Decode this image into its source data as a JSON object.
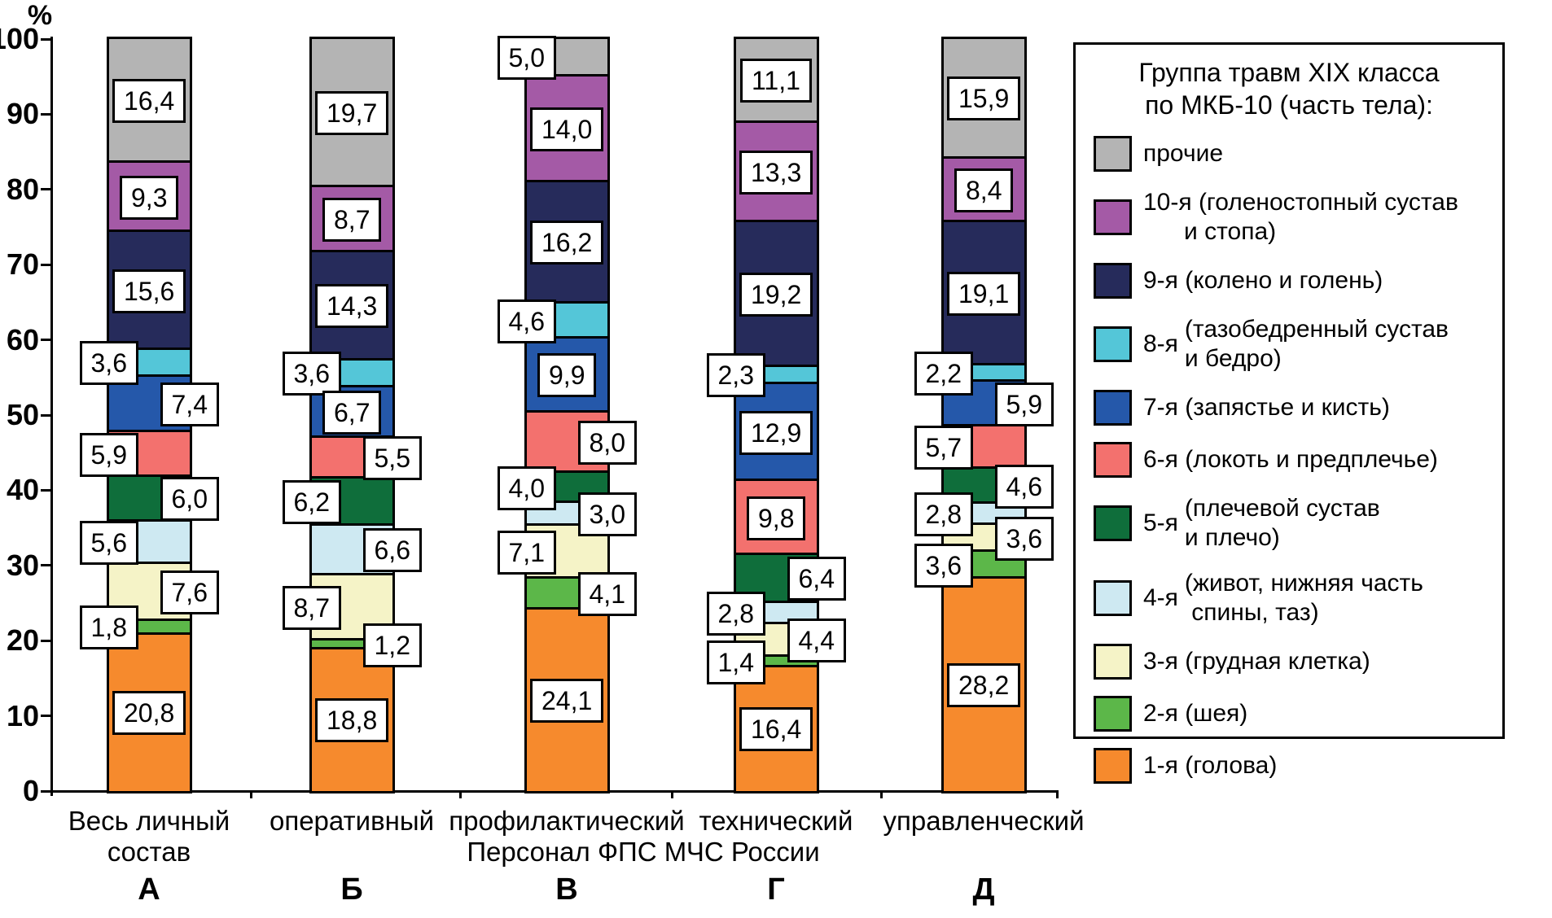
{
  "chart_data": {
    "type": "bar",
    "stacked": true,
    "grid": false,
    "percent_label": "%",
    "y_axis": {
      "min": 0,
      "max": 100,
      "step": 10,
      "unit": "%"
    },
    "x_axis_title": "Персонал ФПС МЧС России",
    "legend": {
      "position": "right",
      "title": "Группа травм XIX класса\nпо МКБ-10 (часть тела):"
    },
    "series": [
      {
        "name": "прочие",
        "color": "#b4b4b4",
        "legend_prefix": "",
        "legend_text": "прочие"
      },
      {
        "name": "10-я (голеностопный сустав и стопа)",
        "color": "#a45aa6",
        "legend_prefix": "",
        "legend_text": "10-я (голеностопный сустав\n      и стопа)"
      },
      {
        "name": "9-я (колено и голень)",
        "color": "#262b5b",
        "legend_prefix": "",
        "legend_text": "9-я (колено и голень)"
      },
      {
        "name": "8-я (тазобедренный сустав и бедро)",
        "color": "#54c6d8",
        "legend_prefix": "8-я",
        "legend_text": "(тазобедренный сустав\nи бедро)"
      },
      {
        "name": "7-я (запястье и кисть)",
        "color": "#2558aa",
        "legend_prefix": "",
        "legend_text": "7-я (запястье и кисть)"
      },
      {
        "name": "6-я (локоть и предплечье)",
        "color": "#f3716e",
        "legend_prefix": "",
        "legend_text": "6-я (локоть и предплечье)"
      },
      {
        "name": "5-я (плечевой сустав и плечо)",
        "color": "#0f6e3b",
        "legend_prefix": "5-я",
        "legend_text": "(плечевой сустав\nи плечо)"
      },
      {
        "name": "4-я (живот, нижняя часть спины, таз)",
        "color": "#cee9f2",
        "legend_prefix": "4-я",
        "legend_text": "(живот, нижняя часть\n спины, таз)"
      },
      {
        "name": "3-я (грудная клетка)",
        "color": "#f5f3c7",
        "legend_prefix": "",
        "legend_text": "3-я (грудная клетка)"
      },
      {
        "name": "2-я (шея)",
        "color": "#5cb749",
        "legend_prefix": "",
        "legend_text": "2-я (шея)"
      },
      {
        "name": "1-я (голова)",
        "color": "#f68a2d",
        "legend_prefix": "",
        "legend_text": "1-я (голова)"
      }
    ],
    "categories": [
      {
        "letter": "А",
        "label": "Весь личный\nсостав",
        "values": [
          16.4,
          9.3,
          15.6,
          3.6,
          7.4,
          5.9,
          6.0,
          5.6,
          7.6,
          1.8,
          20.8
        ],
        "label_pos": [
          "c",
          "c",
          "c",
          "l",
          "r",
          "l",
          "r",
          "l",
          "r",
          "l",
          "c"
        ]
      },
      {
        "letter": "Б",
        "label": "оперативный",
        "values": [
          19.7,
          8.7,
          14.3,
          3.6,
          6.7,
          5.5,
          6.2,
          6.6,
          8.7,
          1.2,
          18.8
        ],
        "label_pos": [
          "c",
          "c",
          "c",
          "l",
          "c",
          "r",
          "l",
          "r",
          "l",
          "r",
          "c"
        ]
      },
      {
        "letter": "В",
        "label": "профилактический",
        "values": [
          5.0,
          14.0,
          16.2,
          4.6,
          9.9,
          8.0,
          4.0,
          3.0,
          7.1,
          4.1,
          24.1
        ],
        "label_pos": [
          "l",
          "c",
          "c",
          "l",
          "c",
          "r",
          "l",
          "r",
          "l",
          "r",
          "c"
        ]
      },
      {
        "letter": "Г",
        "label": "технический",
        "values": [
          11.1,
          13.3,
          19.2,
          2.3,
          12.9,
          9.8,
          6.4,
          2.8,
          4.4,
          1.4,
          16.4
        ],
        "label_pos": [
          "c",
          "c",
          "c",
          "l",
          "c",
          "c",
          "r",
          "l",
          "r",
          "l",
          "c"
        ]
      },
      {
        "letter": "Д",
        "label": "управленческий",
        "values": [
          15.9,
          8.4,
          19.1,
          2.2,
          5.9,
          5.7,
          4.6,
          2.8,
          3.6,
          3.6,
          28.2
        ],
        "label_pos": [
          "c",
          "c",
          "c",
          "l",
          "r",
          "l",
          "r",
          "l",
          "r",
          "l",
          "c"
        ]
      }
    ]
  }
}
